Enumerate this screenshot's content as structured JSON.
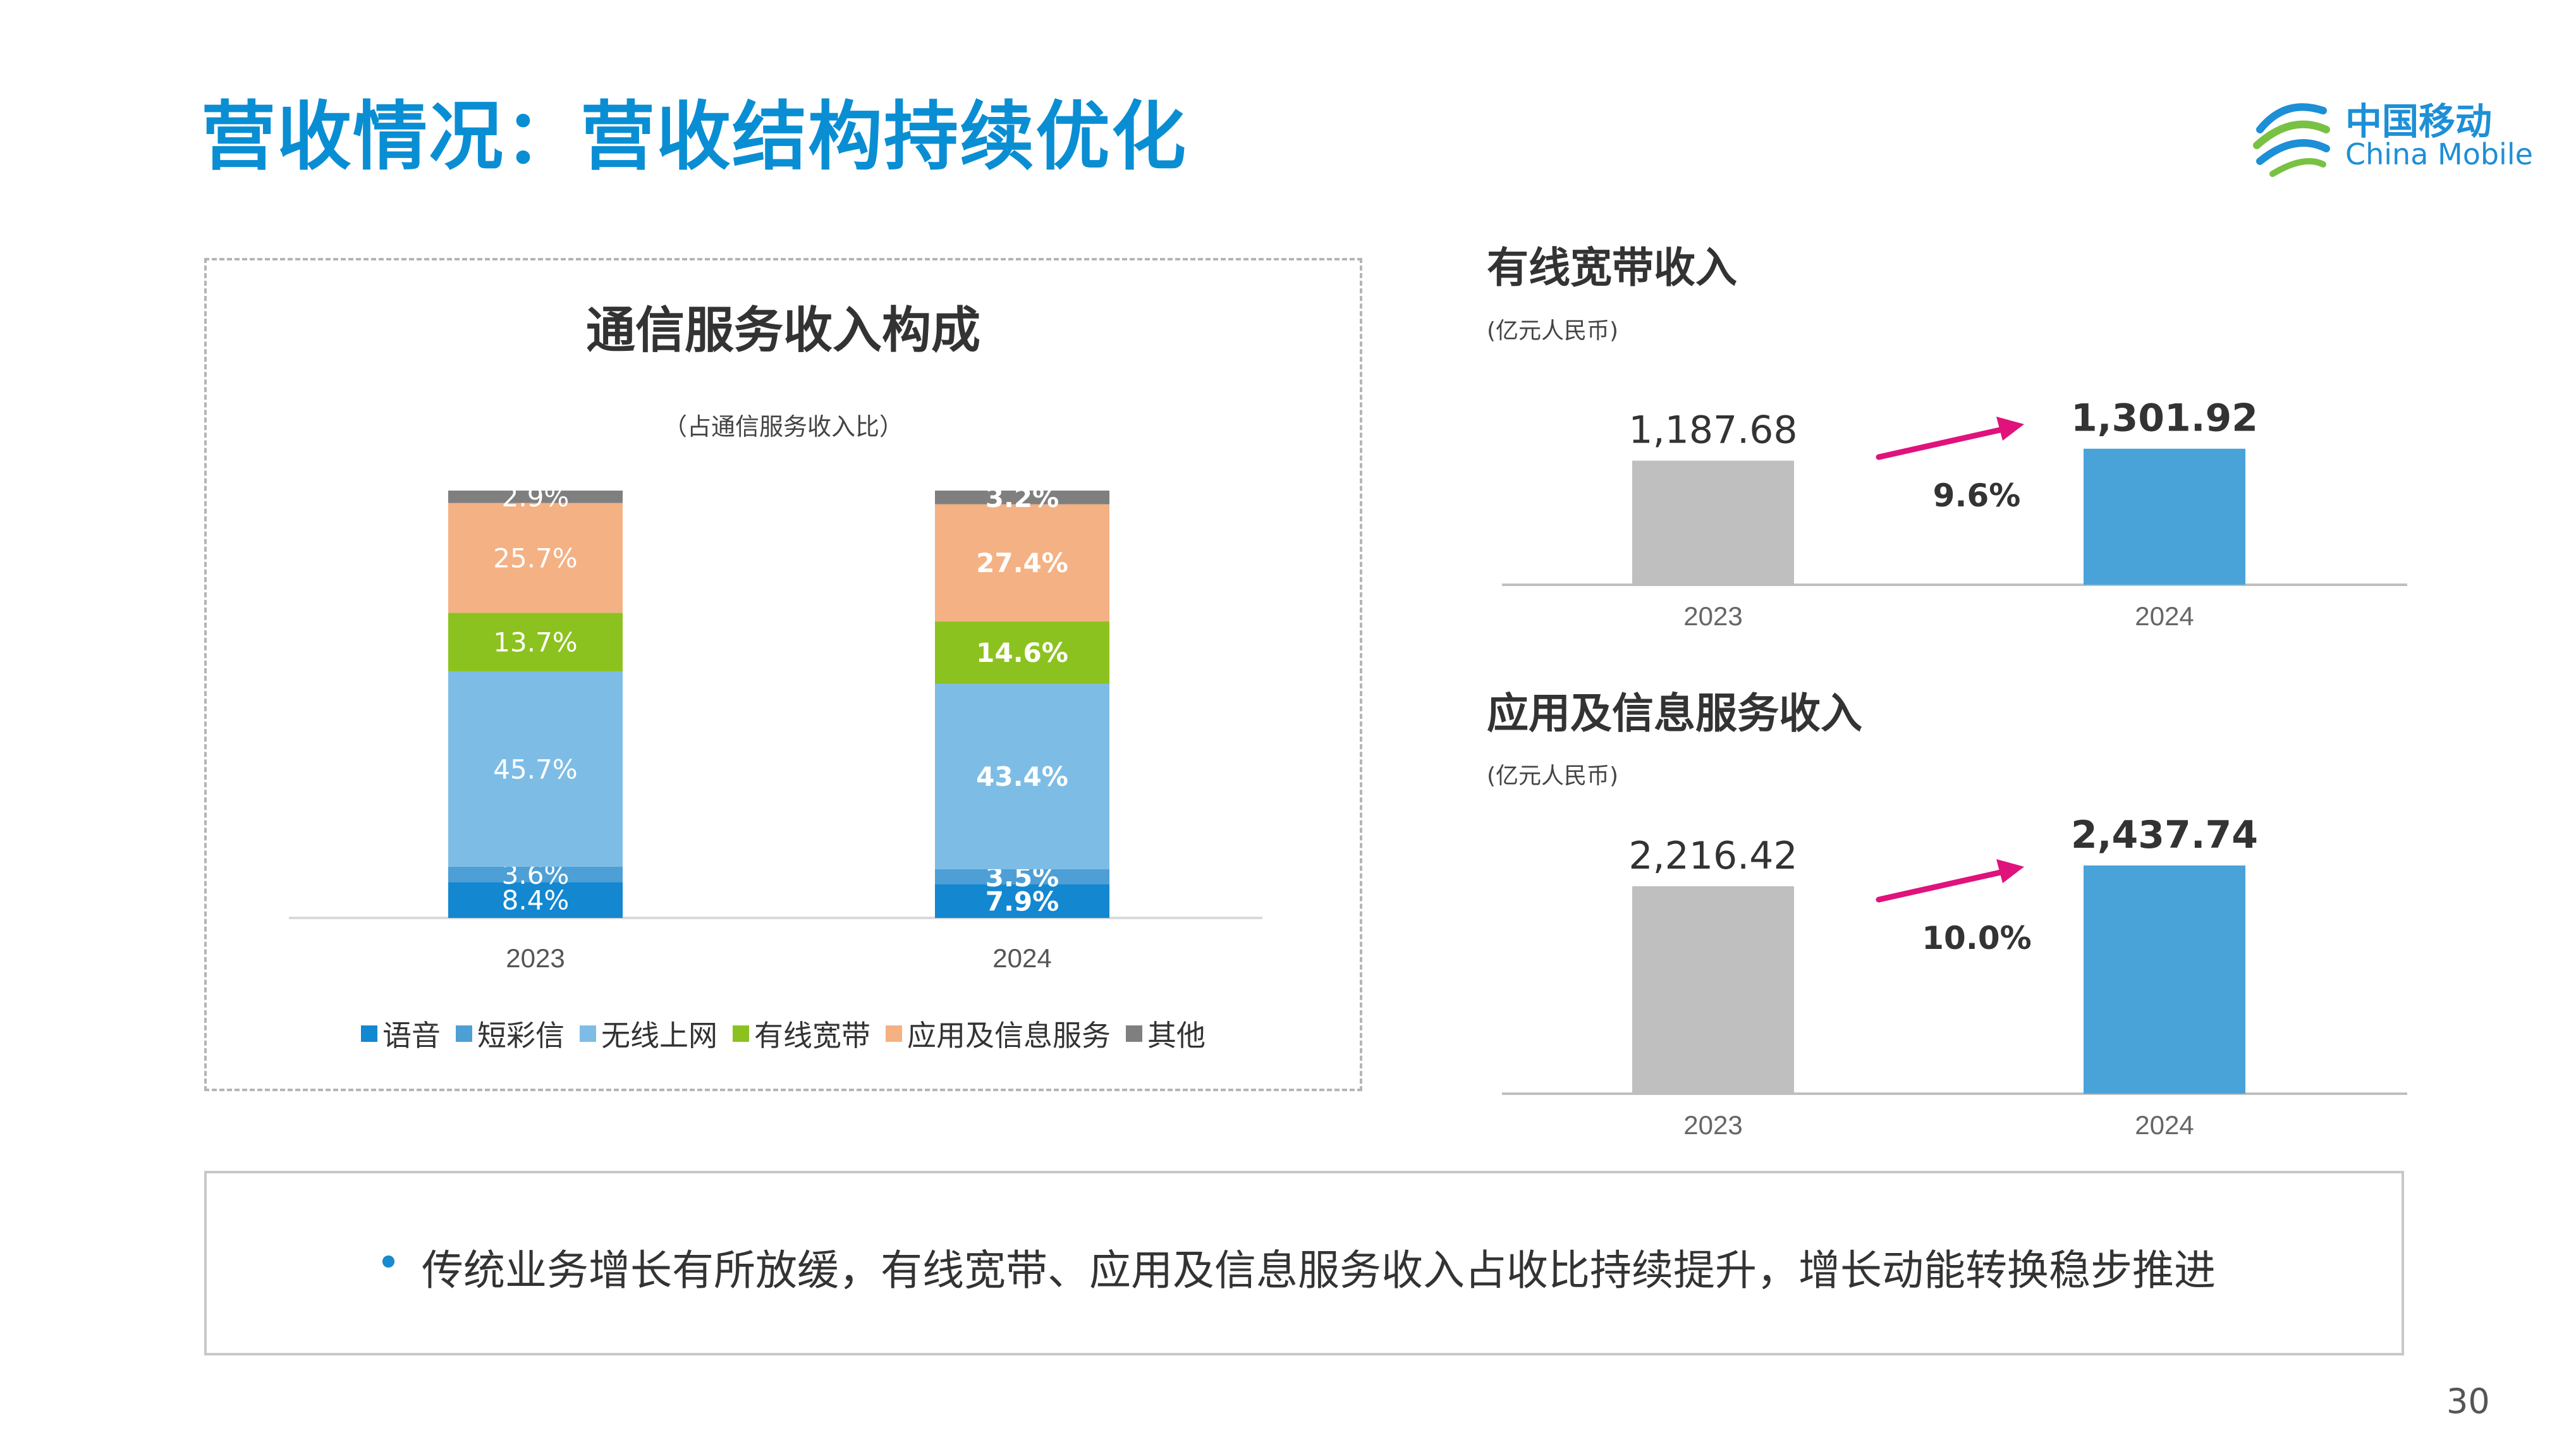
{
  "slide": {
    "title": "营收情况：营收结构持续优化",
    "page_number": "30",
    "logo": {
      "cn": "中国移动",
      "en": "China Mobile"
    },
    "summary": "传统业务增长有所放缓，有线宽带、应用及信息服务收入占收比持续提升，增长动能转换稳步推进"
  },
  "colors": {
    "title_blue": "#0a8ed3",
    "voice": "#1387d0",
    "sms": "#4d9fd6",
    "wireless": "#7dbde5",
    "broadband": "#8cc21f",
    "app_info": "#f4b183",
    "other": "#7f7f7f",
    "bar_2023": "#bfbfbf",
    "bar_2024": "#4aa3d8",
    "growth_arrow": "#e0127b"
  },
  "chart_data": [
    {
      "type": "bar",
      "stacked": true,
      "title": "通信服务收入构成",
      "subtitle": "（占通信服务收入比）",
      "categories": [
        "2023",
        "2024"
      ],
      "unit": "%",
      "series": [
        {
          "name": "语音",
          "values": [
            8.4,
            7.9
          ],
          "labels": [
            "8.4%",
            "7.9%"
          ]
        },
        {
          "name": "短彩信",
          "values": [
            3.6,
            3.5
          ],
          "labels": [
            "3.6%",
            "3.5%"
          ]
        },
        {
          "name": "无线上网",
          "values": [
            45.7,
            43.4
          ],
          "labels": [
            "45.7%",
            "43.4%"
          ]
        },
        {
          "name": "有线宽带",
          "values": [
            13.7,
            14.6
          ],
          "labels": [
            "13.7%",
            "14.6%"
          ]
        },
        {
          "name": "应用及信息服务",
          "values": [
            25.7,
            27.4
          ],
          "labels": [
            "25.7%",
            "27.4%"
          ]
        },
        {
          "name": "其他",
          "values": [
            2.9,
            3.2
          ],
          "labels": [
            "2.9%",
            "3.2%"
          ]
        }
      ],
      "ylim": [
        0,
        100
      ],
      "legend": "bottom"
    },
    {
      "type": "bar",
      "title": "有线宽带收入",
      "unit_label": "(亿元人民币)",
      "categories": [
        "2023",
        "2024"
      ],
      "values": [
        1187.68,
        1301.92
      ],
      "value_labels": [
        "1,187.68",
        "1,301.92"
      ],
      "growth": "9.6%",
      "ylim": [
        0,
        1500
      ]
    },
    {
      "type": "bar",
      "title": "应用及信息服务收入",
      "unit_label": "(亿元人民币)",
      "categories": [
        "2023",
        "2024"
      ],
      "values": [
        2216.42,
        2437.74
      ],
      "value_labels": [
        "2,216.42",
        "2,437.74"
      ],
      "growth": "10.0%",
      "ylim": [
        0,
        2600
      ]
    }
  ]
}
